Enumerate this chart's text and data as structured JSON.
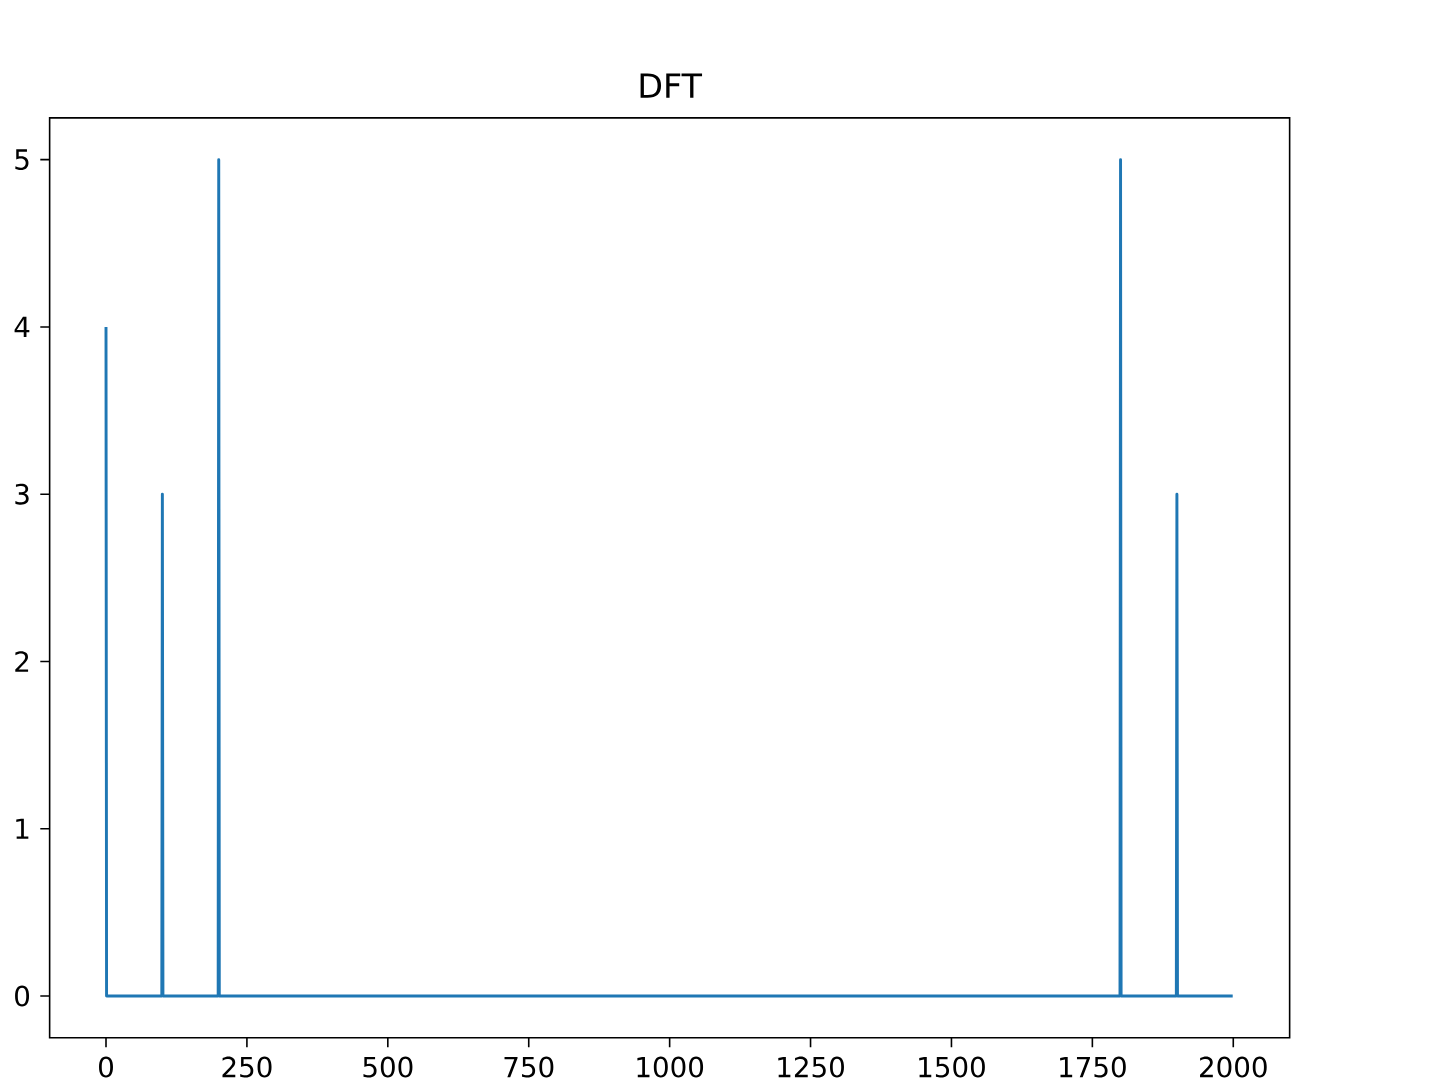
{
  "chart_data": {
    "type": "line",
    "title": "DFT",
    "x": [
      0,
      1,
      99,
      100,
      101,
      199,
      200,
      201,
      1799,
      1800,
      1801,
      1899,
      1900,
      1901,
      1999
    ],
    "series": [
      {
        "color": "#1f77b4",
        "values": [
          4,
          0,
          0,
          3,
          0,
          0,
          5,
          0,
          0,
          5,
          0,
          0,
          3,
          0,
          0
        ]
      }
    ],
    "xlim": [
      -100,
      2100
    ],
    "ylim": [
      -0.25,
      5.25
    ],
    "xticks": [
      0,
      250,
      500,
      750,
      1000,
      1250,
      1500,
      1750,
      2000
    ],
    "yticks": [
      0,
      1,
      2,
      3,
      4,
      5
    ],
    "line_style": "solid"
  }
}
